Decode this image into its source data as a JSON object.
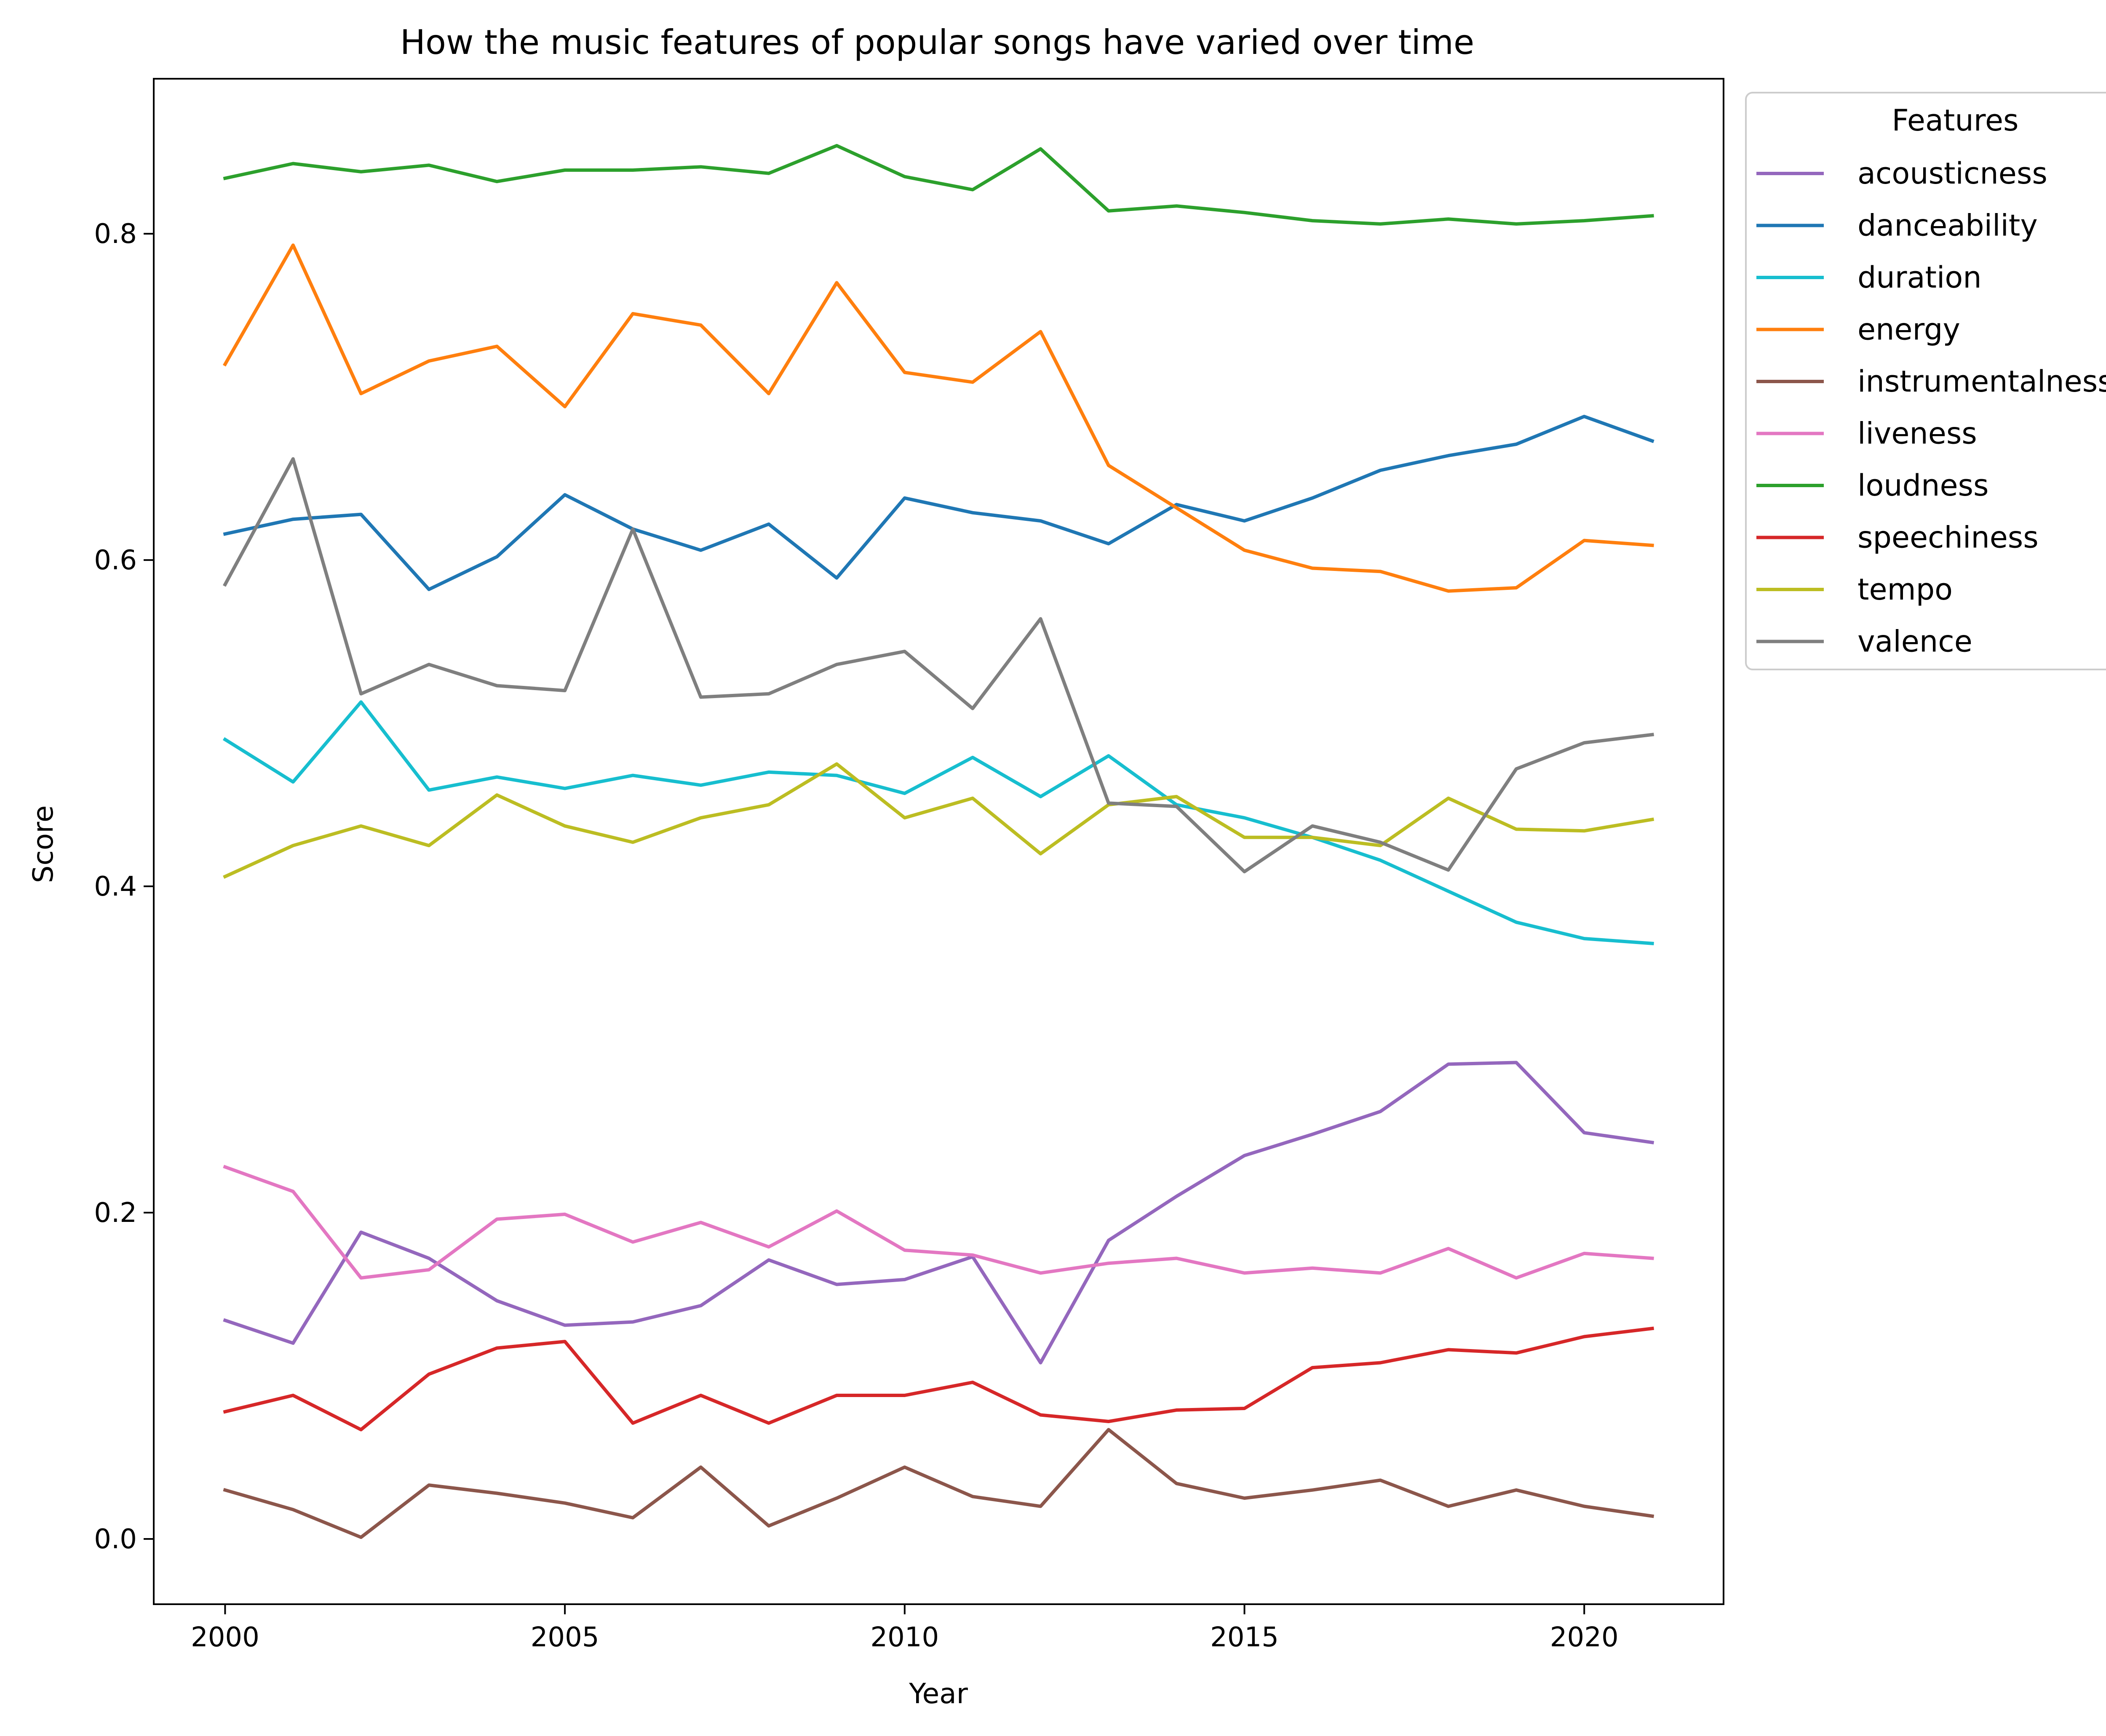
{
  "chart_data": {
    "type": "line",
    "title": "How the music features of popular songs have varied over time",
    "xlabel": "Year",
    "ylabel": "Score",
    "xlim": [
      1998.95,
      2022.05
    ],
    "ylim": [
      -0.04,
      0.895
    ],
    "xticks": [
      2000,
      2005,
      2010,
      2015,
      2020
    ],
    "yticks": [
      0.0,
      0.2,
      0.4,
      0.6,
      0.8
    ],
    "ytick_labels": [
      "0.0",
      "0.2",
      "0.4",
      "0.6",
      "0.8"
    ],
    "grid": false,
    "legend": {
      "title": "Features",
      "placement": "outside upper right"
    },
    "x": [
      2000,
      2001,
      2002,
      2003,
      2004,
      2005,
      2006,
      2007,
      2008,
      2009,
      2010,
      2011,
      2012,
      2013,
      2014,
      2015,
      2016,
      2017,
      2018,
      2019,
      2020,
      2021
    ],
    "series": [
      {
        "name": "acousticness",
        "color": "#9467bd",
        "values": [
          0.134,
          0.12,
          0.188,
          0.172,
          0.146,
          0.131,
          0.133,
          0.143,
          0.171,
          0.156,
          0.159,
          0.173,
          0.108,
          0.183,
          0.21,
          0.235,
          0.248,
          0.262,
          0.291,
          0.292,
          0.249,
          0.243
        ]
      },
      {
        "name": "danceability",
        "color": "#1f77b4",
        "values": [
          0.616,
          0.625,
          0.628,
          0.582,
          0.602,
          0.64,
          0.619,
          0.606,
          0.622,
          0.589,
          0.638,
          0.629,
          0.624,
          0.61,
          0.634,
          0.624,
          0.638,
          0.655,
          0.664,
          0.671,
          0.688,
          0.673
        ]
      },
      {
        "name": "duration",
        "color": "#17becf",
        "values": [
          0.49,
          0.464,
          0.513,
          0.459,
          0.467,
          0.46,
          0.468,
          0.462,
          0.47,
          0.468,
          0.457,
          0.479,
          0.455,
          0.48,
          0.45,
          0.442,
          0.43,
          0.416,
          0.397,
          0.378,
          0.368,
          0.365
        ]
      },
      {
        "name": "energy",
        "color": "#ff7f0e",
        "values": [
          0.72,
          0.793,
          0.702,
          0.722,
          0.731,
          0.694,
          0.751,
          0.744,
          0.702,
          0.77,
          0.715,
          0.709,
          0.74,
          0.658,
          0.632,
          0.606,
          0.595,
          0.593,
          0.581,
          0.583,
          0.612,
          0.609
        ]
      },
      {
        "name": "instrumentalness",
        "color": "#8c564b",
        "values": [
          0.03,
          0.018,
          0.001,
          0.033,
          0.028,
          0.022,
          0.013,
          0.044,
          0.008,
          0.025,
          0.044,
          0.026,
          0.02,
          0.067,
          0.034,
          0.025,
          0.03,
          0.036,
          0.02,
          0.03,
          0.02,
          0.014
        ]
      },
      {
        "name": "liveness",
        "color": "#e377c2",
        "values": [
          0.228,
          0.213,
          0.16,
          0.165,
          0.196,
          0.199,
          0.182,
          0.194,
          0.179,
          0.201,
          0.177,
          0.174,
          0.163,
          0.169,
          0.172,
          0.163,
          0.166,
          0.163,
          0.178,
          0.16,
          0.175,
          0.172
        ]
      },
      {
        "name": "loudness",
        "color": "#2ca02c",
        "values": [
          0.834,
          0.843,
          0.838,
          0.842,
          0.832,
          0.839,
          0.839,
          0.841,
          0.837,
          0.854,
          0.835,
          0.827,
          0.852,
          0.814,
          0.817,
          0.813,
          0.808,
          0.806,
          0.809,
          0.806,
          0.808,
          0.811
        ]
      },
      {
        "name": "speechiness",
        "color": "#d62728",
        "values": [
          0.078,
          0.088,
          0.067,
          0.101,
          0.117,
          0.121,
          0.071,
          0.088,
          0.071,
          0.088,
          0.088,
          0.096,
          0.076,
          0.072,
          0.079,
          0.08,
          0.105,
          0.108,
          0.116,
          0.114,
          0.124,
          0.129
        ]
      },
      {
        "name": "tempo",
        "color": "#bcbd22",
        "values": [
          0.406,
          0.425,
          0.437,
          0.425,
          0.456,
          0.437,
          0.427,
          0.442,
          0.45,
          0.475,
          0.442,
          0.454,
          0.42,
          0.45,
          0.455,
          0.43,
          0.43,
          0.425,
          0.454,
          0.435,
          0.434,
          0.441
        ]
      },
      {
        "name": "valence",
        "color": "#7f7f7f",
        "values": [
          0.585,
          0.662,
          0.518,
          0.536,
          0.523,
          0.52,
          0.619,
          0.516,
          0.518,
          0.536,
          0.544,
          0.509,
          0.564,
          0.451,
          0.449,
          0.409,
          0.437,
          0.427,
          0.41,
          0.472,
          0.488,
          0.493
        ]
      }
    ]
  }
}
